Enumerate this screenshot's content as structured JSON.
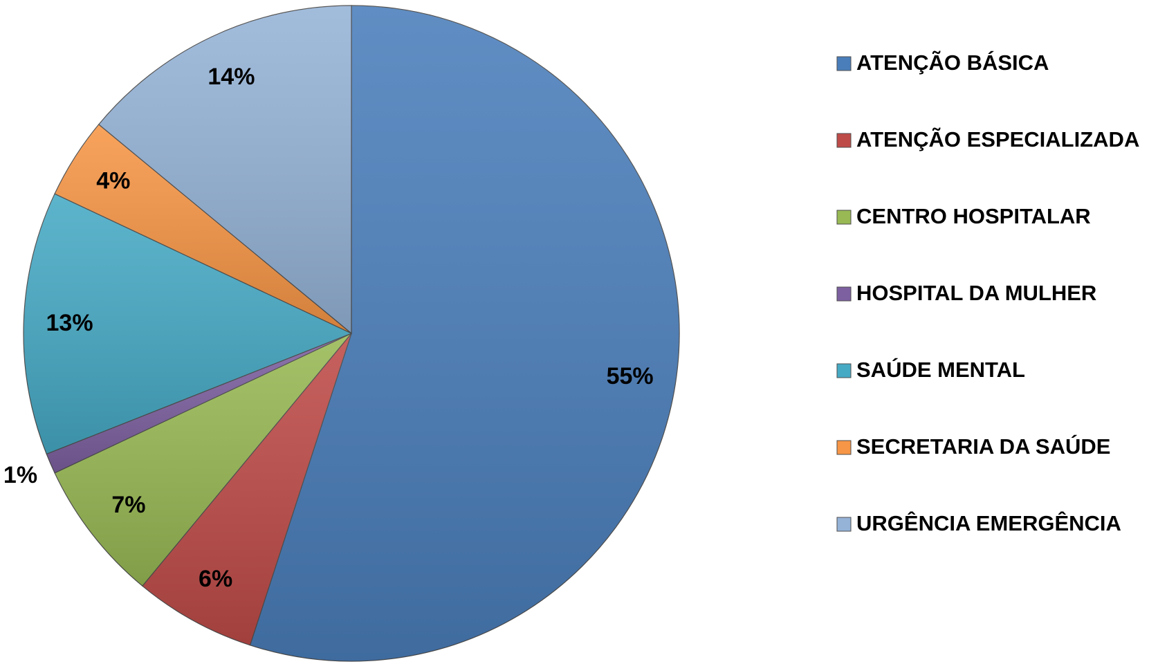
{
  "chart_data": {
    "type": "pie",
    "categories": [
      "ATENÇÃO BÁSICA",
      "ATENÇÃO ESPECIALIZADA",
      "CENTRO HOSPITALAR",
      "HOSPITAL DA MULHER",
      "SAÚDE MENTAL",
      "SECRETARIA DA SAÚDE",
      "URGÊNCIA EMERGÊNCIA"
    ],
    "values": [
      55,
      6,
      7,
      1,
      13,
      4,
      14
    ],
    "value_labels": [
      "55%",
      "6%",
      "7%",
      "1%",
      "13%",
      "4%",
      "14%"
    ],
    "colors": [
      "#4a7ebb",
      "#be4b48",
      "#98b954",
      "#7d60a0",
      "#46aac5",
      "#f79646",
      "#95b3d7"
    ],
    "legend": "right"
  }
}
